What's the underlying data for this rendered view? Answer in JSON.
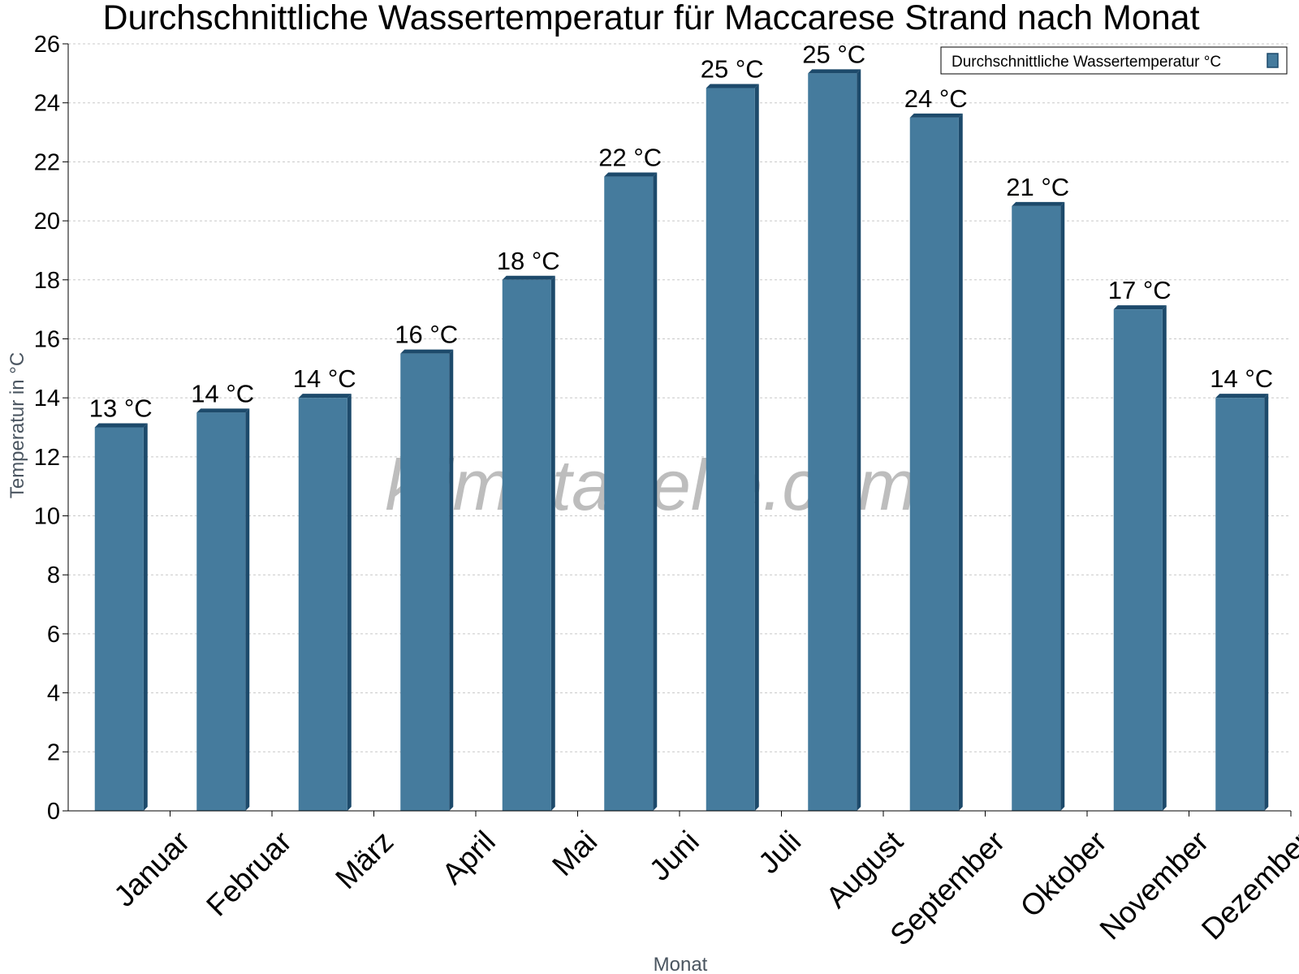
{
  "chart_data": {
    "type": "bar",
    "title": "Durchschnittliche Wassertemperatur für Maccarese Strand nach Monat",
    "xlabel": "Monat",
    "ylabel": "Temperatur in °C",
    "ylim": [
      0,
      26
    ],
    "y_ticks": [
      "0",
      "2",
      "4",
      "6",
      "8",
      "10",
      "12",
      "14",
      "16",
      "18",
      "20",
      "22",
      "24",
      "26"
    ],
    "grid": true,
    "legend_position": "top-right",
    "categories": [
      "Januar",
      "Februar",
      "März",
      "April",
      "Mai",
      "Juni",
      "Juli",
      "August",
      "September",
      "Oktober",
      "November",
      "Dezember"
    ],
    "series": [
      {
        "name": "Durchschnittliche Wassertemperatur °C",
        "color": "#457b9d",
        "values": [
          13,
          13.5,
          14,
          15.5,
          18,
          21.5,
          24.5,
          25,
          23.5,
          20.5,
          17,
          14
        ],
        "data_labels": [
          "13 °C",
          "14 °C",
          "14 °C",
          "16 °C",
          "18 °C",
          "22 °C",
          "25 °C",
          "25 °C",
          "24 °C",
          "21 °C",
          "17 °C",
          "14 °C"
        ]
      }
    ],
    "watermark": "klimatabelle.com"
  }
}
